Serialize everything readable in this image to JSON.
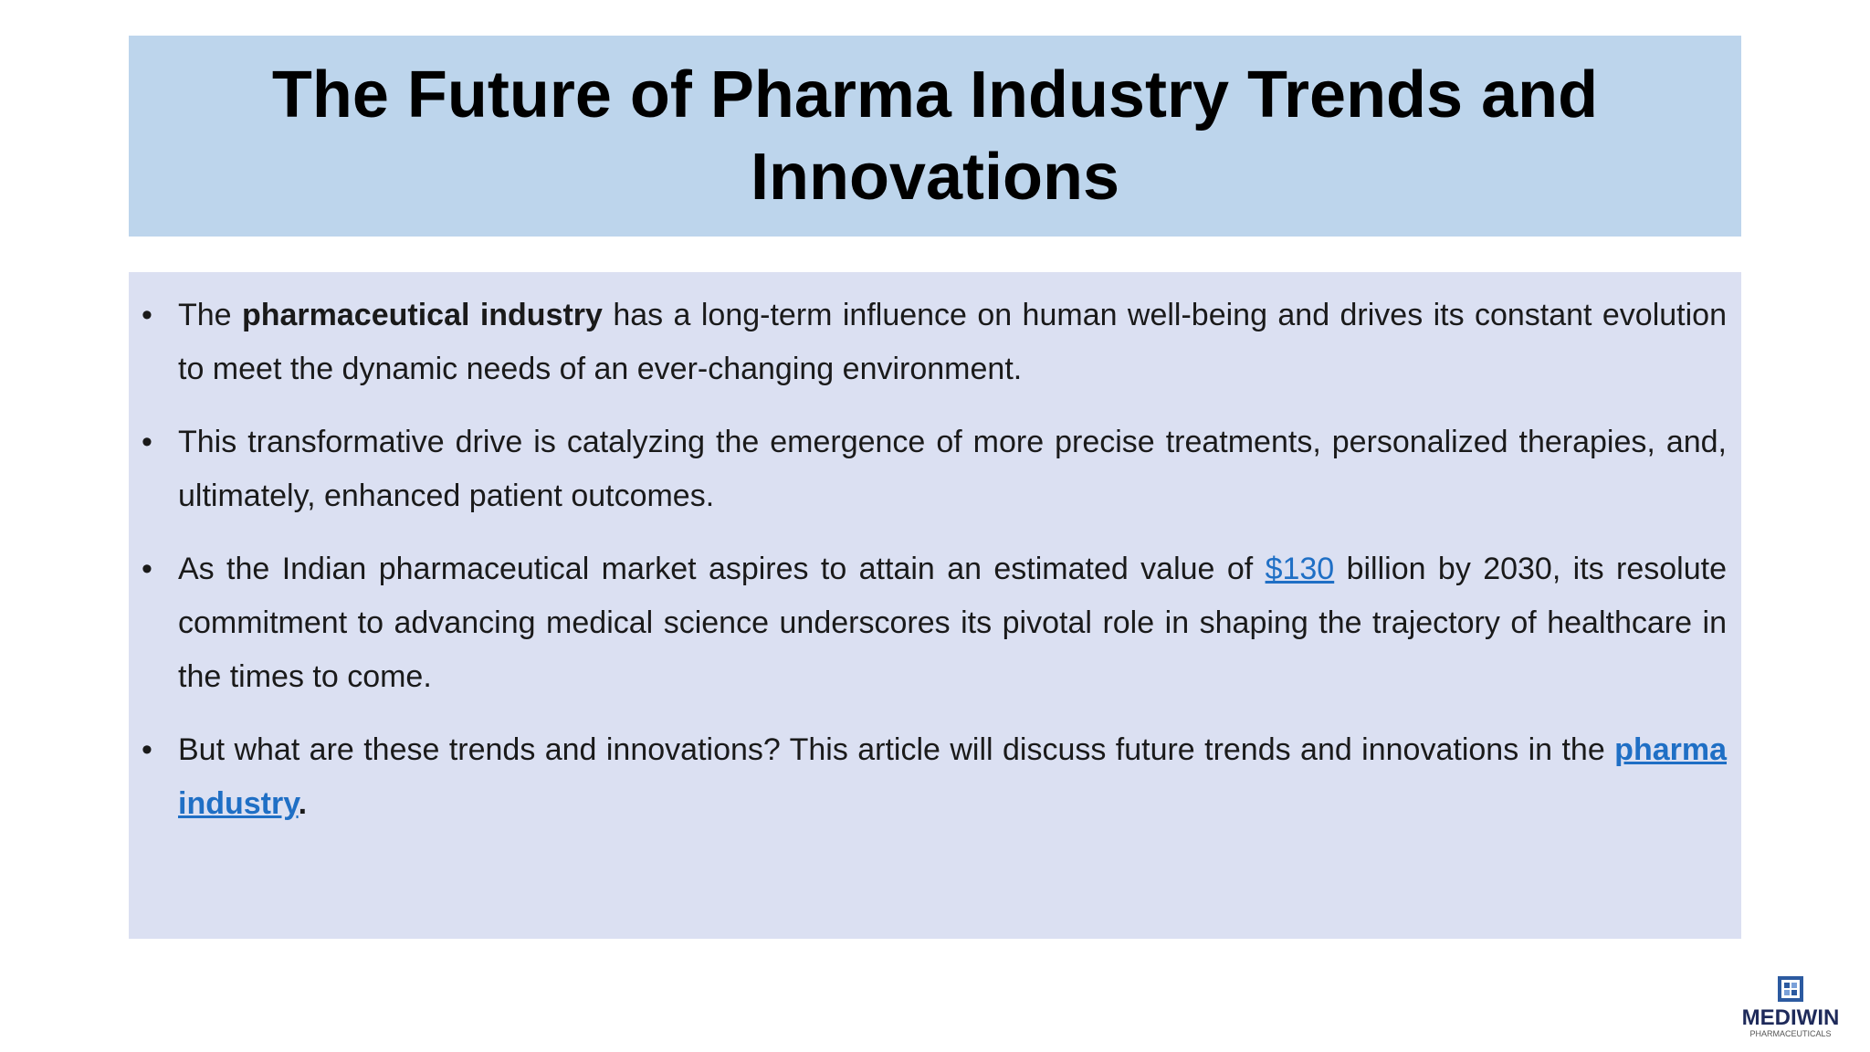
{
  "slide": {
    "title": "The Future of Pharma Industry Trends and Innovations",
    "bullets": [
      [
        "The ",
        "pharmaceutical industry",
        " has a long-term influence on human well-being and drives its constant evolution to meet the dynamic needs of an ever-changing environment."
      ],
      [
        "This transformative drive is catalyzing the emergence of more precise treatments, personalized therapies, and, ultimately, enhanced patient outcomes."
      ],
      [
        "As the Indian pharmaceutical market aspires to attain an estimated value of ",
        "$130",
        " billion by 2030, its resolute commitment to advancing medical science underscores its pivotal role in shaping the trajectory of healthcare in the times to come."
      ],
      [
        "But what are these trends and innovations? This article will discuss future trends and innovations in the ",
        "pharma industry",
        "."
      ]
    ],
    "logo": {
      "name": "MEDIWIN",
      "tagline": "PHARMACEUTICALS"
    }
  }
}
